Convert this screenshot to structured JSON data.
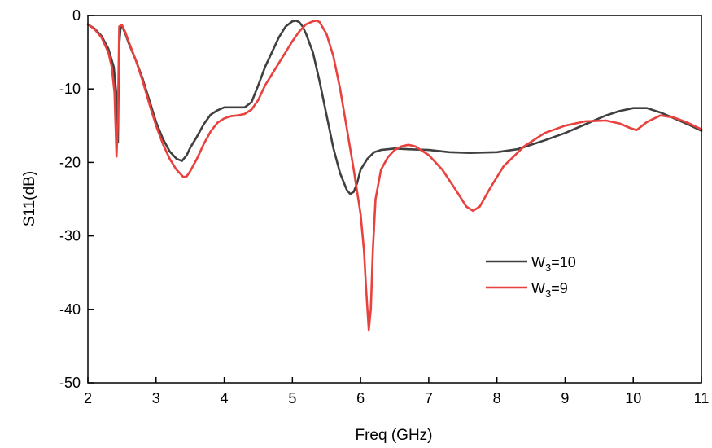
{
  "chart_data": {
    "type": "line",
    "xlabel": "Freq (GHz)",
    "ylabel": "S11(dB)",
    "xlim": [
      2,
      11
    ],
    "ylim": [
      -50,
      0
    ],
    "xticks": [
      "2",
      "3",
      "4",
      "5",
      "6",
      "7",
      "8",
      "9",
      "10",
      "11"
    ],
    "yticks": [
      "0",
      "-10",
      "-20",
      "-30",
      "-40",
      "-50"
    ],
    "grid": false,
    "legend_position": "center-right",
    "series": [
      {
        "name": "W3=10",
        "name_main": "W",
        "name_sub": "3",
        "name_rest": "=10",
        "color": "#404040",
        "x": [
          2.0,
          2.1,
          2.2,
          2.3,
          2.38,
          2.42,
          2.44,
          2.46,
          2.48,
          2.5,
          2.55,
          2.6,
          2.7,
          2.8,
          2.9,
          3.0,
          3.1,
          3.2,
          3.3,
          3.38,
          3.45,
          3.5,
          3.6,
          3.7,
          3.8,
          3.9,
          4.0,
          4.1,
          4.2,
          4.3,
          4.4,
          4.5,
          4.6,
          4.7,
          4.8,
          4.9,
          5.0,
          5.05,
          5.1,
          5.15,
          5.2,
          5.3,
          5.4,
          5.5,
          5.6,
          5.7,
          5.8,
          5.85,
          5.9,
          5.95,
          6.0,
          6.1,
          6.2,
          6.3,
          6.5,
          6.7,
          7.0,
          7.3,
          7.6,
          8.0,
          8.3,
          8.5,
          8.7,
          9.0,
          9.3,
          9.6,
          9.8,
          10.0,
          10.2,
          10.4,
          10.6,
          10.8,
          11.0
        ],
        "values": [
          -1.2,
          -1.8,
          -2.8,
          -4.5,
          -7.0,
          -11.0,
          -17.3,
          -4.0,
          -1.6,
          -1.4,
          -2.5,
          -3.8,
          -6.0,
          -8.5,
          -11.5,
          -14.5,
          -16.8,
          -18.5,
          -19.5,
          -19.8,
          -19.0,
          -18.0,
          -16.5,
          -14.8,
          -13.5,
          -12.9,
          -12.5,
          -12.5,
          -12.5,
          -12.5,
          -11.8,
          -9.5,
          -7.0,
          -5.0,
          -3.0,
          -1.5,
          -0.8,
          -0.7,
          -0.9,
          -1.5,
          -2.5,
          -5.0,
          -9.0,
          -13.5,
          -18.0,
          -21.5,
          -23.8,
          -24.3,
          -24.0,
          -22.8,
          -21.0,
          -19.5,
          -18.6,
          -18.3,
          -18.1,
          -18.2,
          -18.3,
          -18.6,
          -18.7,
          -18.6,
          -18.2,
          -17.6,
          -17.0,
          -16.0,
          -14.8,
          -13.6,
          -13.0,
          -12.6,
          -12.6,
          -13.2,
          -14.0,
          -14.8,
          -15.7
        ]
      },
      {
        "name": "W3=9",
        "name_main": "W",
        "name_sub": "3",
        "name_rest": "=9",
        "color": "#e8413e",
        "x": [
          2.0,
          2.1,
          2.2,
          2.3,
          2.35,
          2.39,
          2.41,
          2.42,
          2.44,
          2.46,
          2.5,
          2.55,
          2.6,
          2.7,
          2.8,
          2.9,
          3.0,
          3.1,
          3.2,
          3.3,
          3.4,
          3.45,
          3.5,
          3.6,
          3.7,
          3.8,
          3.9,
          4.0,
          4.1,
          4.2,
          4.3,
          4.4,
          4.5,
          4.6,
          4.7,
          4.8,
          4.9,
          5.0,
          5.1,
          5.2,
          5.3,
          5.35,
          5.4,
          5.5,
          5.6,
          5.7,
          5.8,
          5.9,
          6.0,
          6.05,
          6.08,
          6.12,
          6.15,
          6.18,
          6.22,
          6.3,
          6.4,
          6.5,
          6.6,
          6.7,
          6.8,
          7.0,
          7.2,
          7.4,
          7.55,
          7.65,
          7.75,
          7.9,
          8.1,
          8.4,
          8.7,
          9.0,
          9.3,
          9.6,
          9.8,
          9.95,
          10.05,
          10.2,
          10.4,
          10.6,
          10.8,
          11.0
        ],
        "values": [
          -1.2,
          -1.9,
          -3.0,
          -5.0,
          -7.0,
          -10.5,
          -16.0,
          -19.2,
          -14.0,
          -1.5,
          -1.3,
          -2.3,
          -3.6,
          -6.0,
          -8.8,
          -12.0,
          -15.0,
          -17.5,
          -19.5,
          -21.0,
          -22.0,
          -21.9,
          -21.2,
          -19.5,
          -17.5,
          -15.8,
          -14.6,
          -14.0,
          -13.7,
          -13.6,
          -13.4,
          -12.8,
          -11.5,
          -9.5,
          -8.0,
          -6.5,
          -5.0,
          -3.5,
          -2.2,
          -1.2,
          -0.8,
          -0.7,
          -0.9,
          -2.5,
          -5.5,
          -10.0,
          -15.5,
          -21.0,
          -27.0,
          -32.0,
          -37.0,
          -42.8,
          -40.0,
          -32.0,
          -25.0,
          -21.0,
          -19.3,
          -18.3,
          -17.8,
          -17.6,
          -17.8,
          -19.0,
          -21.0,
          -23.8,
          -26.0,
          -26.6,
          -26.0,
          -23.5,
          -20.5,
          -17.8,
          -16.0,
          -15.0,
          -14.4,
          -14.3,
          -14.7,
          -15.3,
          -15.6,
          -14.5,
          -13.6,
          -13.9,
          -14.6,
          -15.5
        ]
      }
    ]
  }
}
